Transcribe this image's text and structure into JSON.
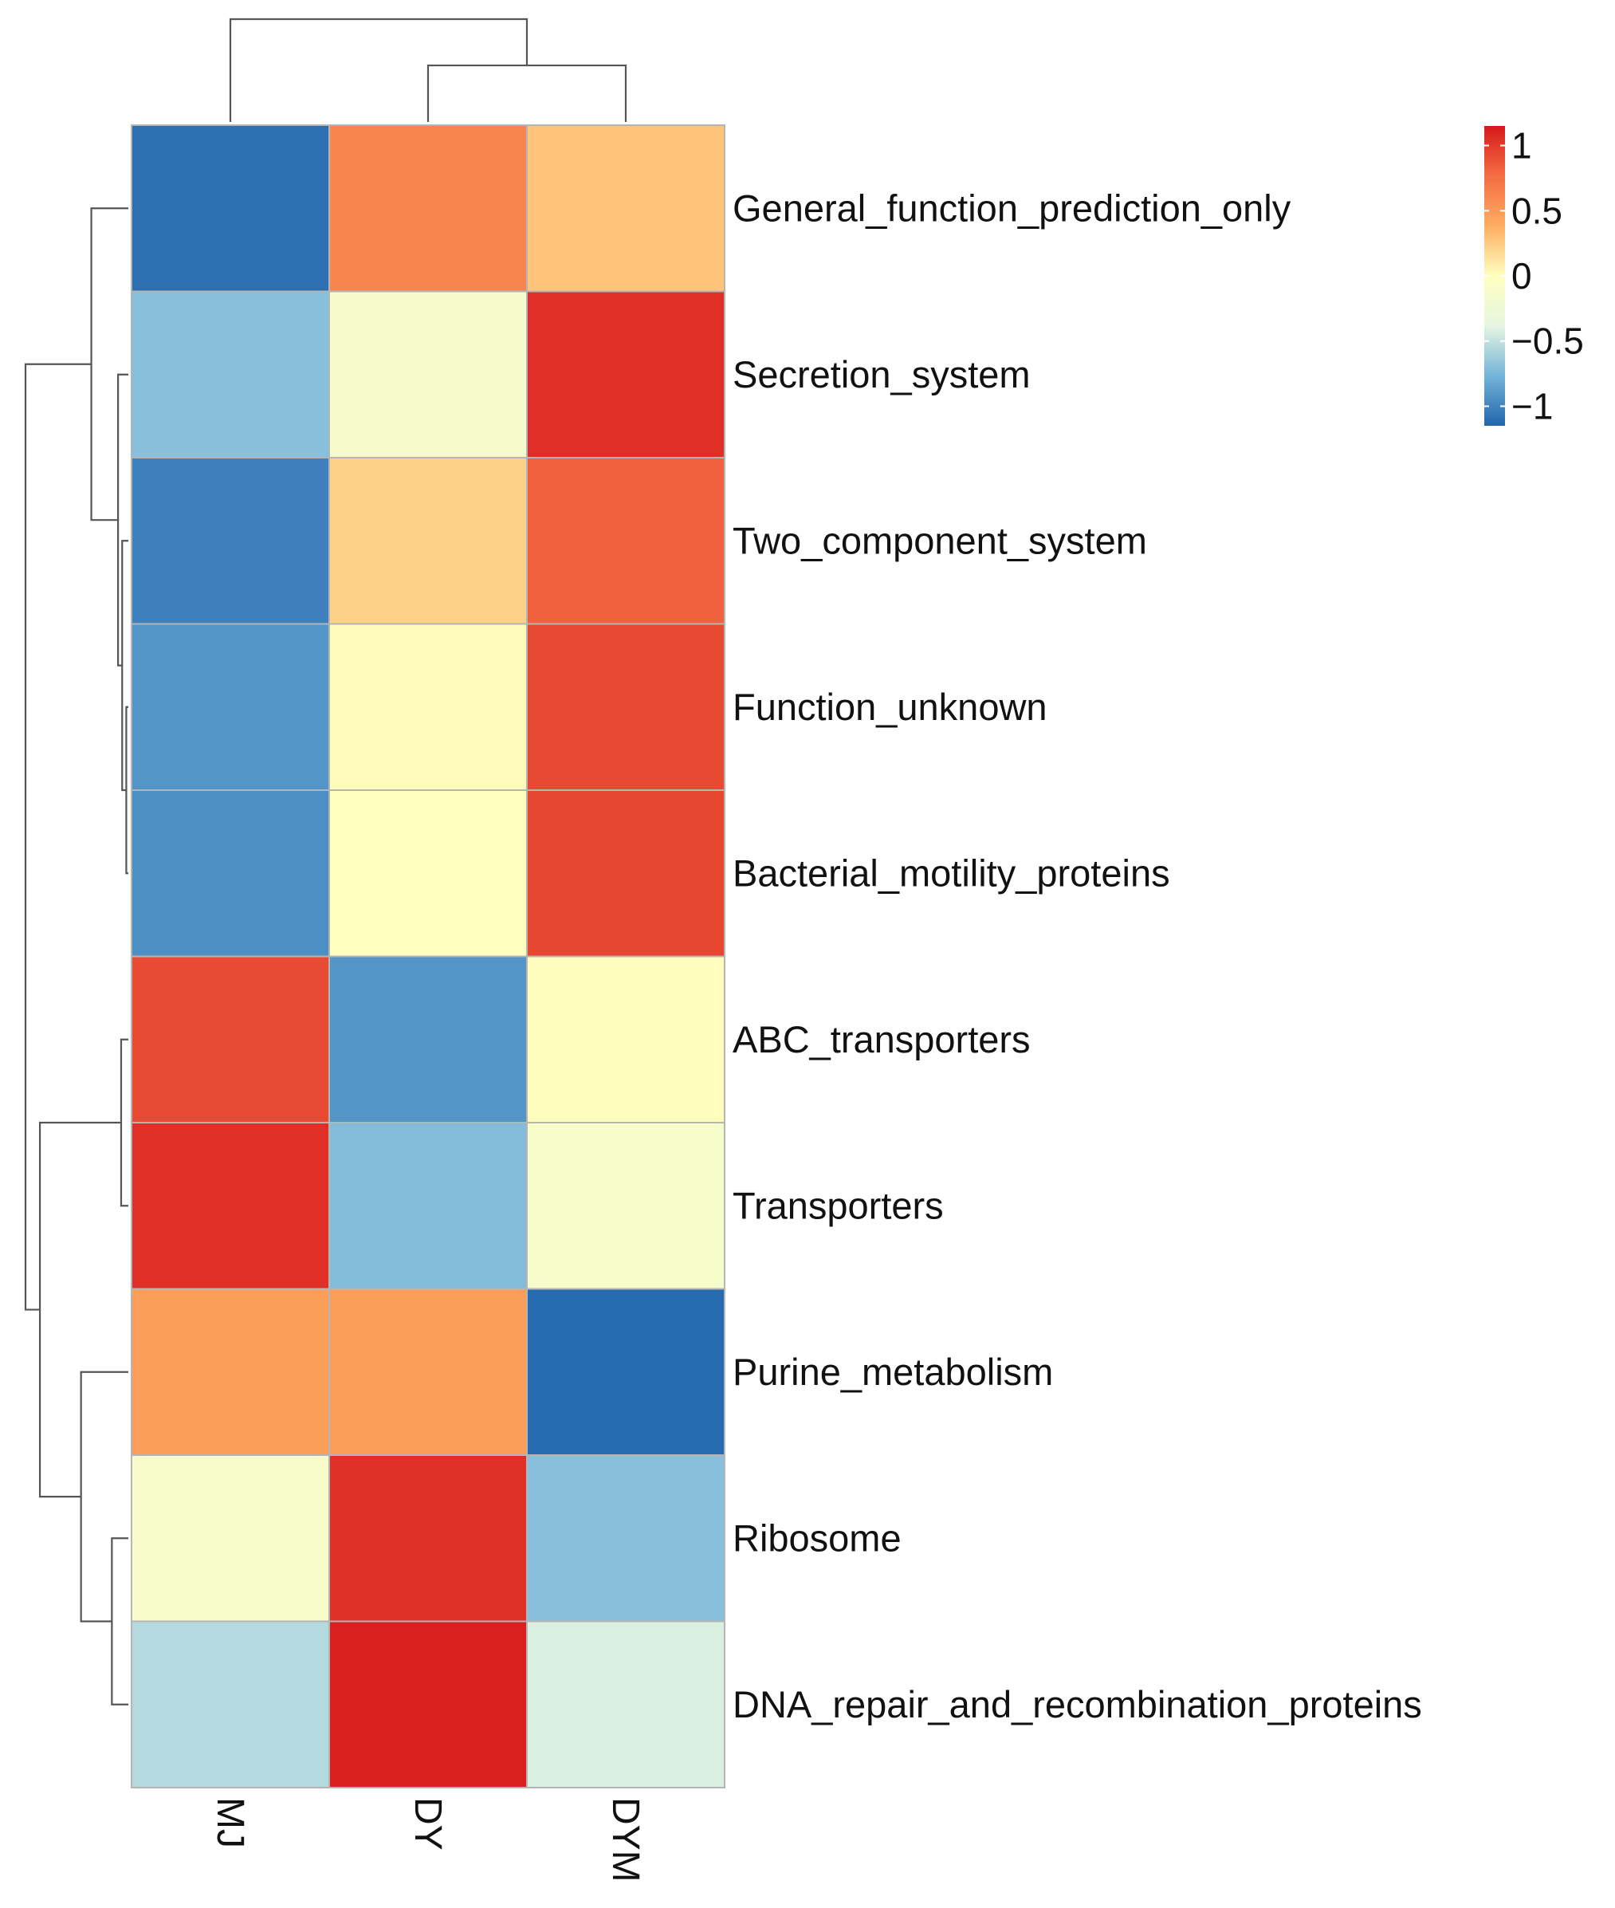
{
  "chart_data": {
    "type": "heatmap",
    "title": "",
    "columns": [
      "MJ",
      "DY",
      "DYM"
    ],
    "rows": [
      "General_function_prediction_only",
      "Secretion_system",
      "Two_component_system",
      "Function_unknown",
      "Bacterial_motility_proteins",
      "ABC_transporters",
      "Transporters",
      "Purine_metabolism",
      "Ribosome",
      "DNA_repair_and_recombination_proteins"
    ],
    "values": [
      [
        -1.1,
        0.62,
        0.28
      ],
      [
        -0.7,
        -0.15,
        1.05
      ],
      [
        -1.02,
        0.22,
        0.82
      ],
      [
        -0.92,
        0.02,
        0.93
      ],
      [
        -0.95,
        0.0,
        0.94
      ],
      [
        0.92,
        -0.92,
        0.01
      ],
      [
        1.05,
        -0.72,
        -0.13
      ],
      [
        0.48,
        0.48,
        -1.12
      ],
      [
        -0.12,
        1.04,
        -0.7
      ],
      [
        -0.55,
        1.12,
        -0.42
      ]
    ],
    "color_scale": {
      "range": [
        -1.15,
        1.15
      ],
      "ticks": [
        1,
        0.5,
        0,
        -0.5,
        -1
      ],
      "tick_labels": [
        "1",
        "0.5",
        "0",
        "−0.5",
        "−1"
      ],
      "stops": [
        "#2166ac",
        "#74b4d9",
        "#e6f5e1",
        "#ffffbf",
        "#fdae61",
        "#f46d43",
        "#d7191c"
      ],
      "low_color": "#1a6fb4",
      "mid_color": "#fcfcc0",
      "high_color": "#f52a22"
    },
    "column_dendrogram": {
      "order": [
        "MJ",
        "DY",
        "DYM"
      ],
      "merges": [
        {
          "left": "DY",
          "right": "DYM",
          "height": 0.55
        },
        {
          "left": "MJ",
          "right": "DY+DYM",
          "height": 1.0
        }
      ]
    },
    "row_dendrogram": {
      "merges": [
        {
          "left": "Function_unknown",
          "right": "Bacterial_motility_proteins",
          "height": 0.02
        },
        {
          "left": "Two_component_system",
          "right": "Function_unknown+Bacterial_motility_proteins",
          "height": 0.06
        },
        {
          "left": "Secretion_system",
          "right": "Two_component_system+...",
          "height": 0.1
        },
        {
          "left": "General_function_prediction_only",
          "right": "Secretion_system+...",
          "height": 0.36
        },
        {
          "left": "ABC_transporters",
          "right": "Transporters",
          "height": 0.07
        },
        {
          "left": "Ribosome",
          "right": "DNA_repair_and_recombination_proteins",
          "height": 0.16
        },
        {
          "left": "Purine_metabolism",
          "right": "Ribosome+DNA_repair_and_recombination_proteins",
          "height": 0.46
        },
        {
          "left": "ABC_transporters+Transporters",
          "right": "Purine_metabolism+...",
          "height": 0.86
        },
        {
          "left": "General_function_prediction_only+...",
          "right": "ABC_transporters+...",
          "height": 1.0
        }
      ]
    }
  }
}
